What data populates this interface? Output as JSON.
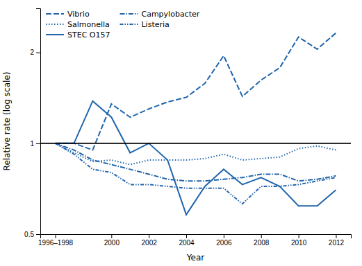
{
  "chart_data": {
    "type": "line",
    "x_label": "Year",
    "y_label": "Relative rate (log scale)",
    "x": [
      1997,
      1998,
      1999,
      2000,
      2001,
      2002,
      2003,
      2004,
      2005,
      2006,
      2007,
      2008,
      2009,
      2010,
      2011,
      2012
    ],
    "series": [
      {
        "name": "Vibrio",
        "color": "#2166ac",
        "line_style": "dashed",
        "values": [
          1.0,
          1.0,
          0.95,
          1.35,
          1.22,
          1.3,
          1.37,
          1.42,
          1.58,
          1.95,
          1.43,
          1.62,
          1.78,
          2.25,
          2.05,
          2.32
        ]
      },
      {
        "name": "Campylobacter",
        "color": "#2166ac",
        "line_style": "dashdot",
        "values": [
          1.0,
          0.95,
          0.88,
          0.85,
          0.82,
          0.79,
          0.76,
          0.75,
          0.75,
          0.76,
          0.77,
          0.79,
          0.79,
          0.75,
          0.76,
          0.78
        ]
      },
      {
        "name": "Salmonella",
        "color": "#2166ac",
        "line_style": "dotted",
        "values": [
          1.0,
          0.93,
          0.87,
          0.88,
          0.85,
          0.88,
          0.88,
          0.88,
          0.89,
          0.92,
          0.88,
          0.89,
          0.9,
          0.96,
          0.98,
          0.95
        ]
      },
      {
        "name": "Listeria",
        "color": "#2166ac",
        "line_style": "dashdotdot",
        "values": [
          1.0,
          0.92,
          0.82,
          0.8,
          0.73,
          0.73,
          0.72,
          0.71,
          0.71,
          0.71,
          0.63,
          0.72,
          0.72,
          0.73,
          0.75,
          0.77
        ]
      },
      {
        "name": "STEC O157",
        "color": "#2166ac",
        "line_style": "solid",
        "values": [
          1.0,
          1.0,
          1.38,
          1.22,
          0.93,
          1.0,
          0.88,
          0.58,
          0.72,
          0.82,
          0.73,
          0.77,
          0.72,
          0.62,
          0.62,
          0.7
        ]
      }
    ],
    "reference_line": 1.0,
    "xlim": [
      1996.2,
      2012.8
    ],
    "xticks": [
      {
        "value": 1997,
        "label": "1996–1998"
      },
      2000,
      2002,
      2004,
      2006,
      2008,
      2010,
      2012
    ],
    "ylim": [
      0.5,
      2.8
    ],
    "yticks": [
      0.5,
      1,
      2
    ],
    "log": "y",
    "grid": false,
    "legend": "upper left"
  }
}
